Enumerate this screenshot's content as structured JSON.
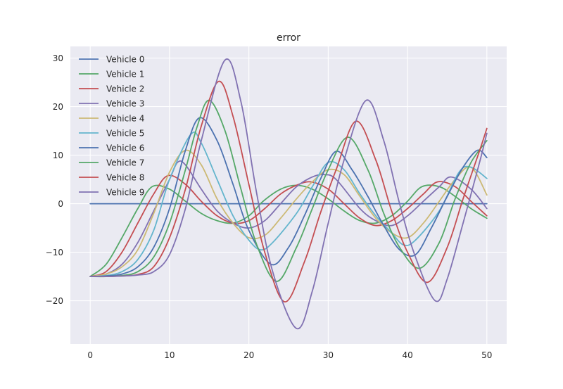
{
  "chart_data": {
    "type": "line",
    "title": "error",
    "xlabel": "",
    "ylabel": "",
    "xlim": [
      -2.5,
      52.5
    ],
    "ylim": [
      -28.9,
      32.4
    ],
    "xticks": [
      0,
      10,
      20,
      30,
      40,
      50
    ],
    "yticks": [
      -20,
      -10,
      0,
      10,
      20,
      30
    ],
    "xtick_labels": [
      "0",
      "10",
      "20",
      "30",
      "40",
      "50"
    ],
    "ytick_labels": [
      "−20",
      "−10",
      "0",
      "10",
      "20",
      "30"
    ],
    "grid": true,
    "legend_position": "upper-left",
    "series": [
      {
        "name": "Vehicle 0",
        "color": "#4c72b0",
        "x": [
          0,
          50
        ],
        "y": [
          0,
          0
        ]
      },
      {
        "name": "Vehicle 1",
        "color": "#55a868",
        "x": [
          0,
          2,
          4,
          6,
          7.8,
          10,
          12,
          14,
          16,
          18,
          20,
          21.8,
          24,
          26,
          28,
          30,
          32,
          34,
          36,
          38,
          40,
          41.8,
          44,
          46,
          48,
          50
        ],
        "y": [
          -15,
          -12.5,
          -7,
          -1,
          3.5,
          3,
          0.5,
          -2,
          -3.5,
          -4,
          -2.5,
          0.5,
          3,
          3.8,
          3,
          1,
          -1.5,
          -3.5,
          -4,
          -2.5,
          0.5,
          3.5,
          3.5,
          1.5,
          -1,
          -3
        ]
      },
      {
        "name": "Vehicle 2",
        "color": "#c44e52",
        "x": [
          0,
          2,
          4,
          6,
          8,
          9.8,
          12,
          14,
          16,
          18,
          20,
          22,
          24,
          26,
          27.8,
          30,
          32,
          34,
          36,
          38,
          40,
          42,
          43.8,
          46,
          48,
          50
        ],
        "y": [
          -15,
          -14,
          -10,
          -4,
          2,
          5.8,
          4,
          0.5,
          -2.5,
          -4,
          -3.5,
          -1,
          2,
          3.8,
          4.5,
          3,
          0,
          -3,
          -4.5,
          -3.5,
          -1,
          2,
          4.5,
          3.5,
          0.5,
          -2.5
        ]
      },
      {
        "name": "Vehicle 3",
        "color": "#8172b2",
        "x": [
          0,
          2,
          4,
          6,
          8,
          10,
          11,
          12,
          14,
          16,
          18,
          20,
          22,
          24,
          26,
          28,
          29.5,
          31,
          34,
          36,
          38,
          40,
          42,
          44,
          45.5,
          48,
          50
        ],
        "y": [
          -15,
          -14.5,
          -12.5,
          -8,
          -1.5,
          5,
          8.5,
          8,
          3,
          -1.5,
          -4,
          -5,
          -3.5,
          0,
          3.5,
          5.5,
          6,
          5,
          -1,
          -3.5,
          -4.5,
          -2.5,
          0.5,
          3.5,
          5.5,
          3,
          -1
        ]
      },
      {
        "name": "Vehicle 4",
        "color": "#ccb974",
        "x": [
          0,
          2,
          4,
          6,
          8,
          10,
          12,
          14,
          16,
          18,
          20,
          22,
          24,
          26,
          28,
          30,
          32,
          34,
          36,
          38,
          40,
          42,
          44,
          46,
          48,
          50
        ],
        "y": [
          -15,
          -14.5,
          -13,
          -9.5,
          -2,
          6.5,
          11,
          8,
          1,
          -4,
          -7,
          -6.5,
          -3,
          1,
          4.5,
          7,
          6,
          1.5,
          -3,
          -6,
          -7,
          -4,
          0.5,
          5,
          7.5,
          1.8
        ]
      },
      {
        "name": "Vehicle 5",
        "color": "#64b5cd",
        "x": [
          0,
          2,
          4,
          6,
          8,
          10,
          12.7,
          14,
          16,
          18,
          20,
          21.5,
          23,
          26,
          28,
          30,
          32,
          34,
          36,
          38,
          39.5,
          41,
          44,
          46.5,
          48,
          50
        ],
        "y": [
          -15,
          -14.8,
          -14,
          -11.5,
          -5.5,
          5,
          14.3,
          12.5,
          5,
          -2.5,
          -7.5,
          -9.5,
          -8,
          -2,
          3.5,
          8.5,
          7,
          2,
          -2.5,
          -6,
          -8.5,
          -7.5,
          -1.5,
          6.5,
          7.5,
          5.2
        ]
      },
      {
        "name": "Vehicle 6",
        "color": "#4c72b0",
        "x": [
          0,
          2,
          4,
          6,
          8,
          10,
          12,
          13.8,
          16,
          18,
          20,
          22.8,
          25,
          27,
          29,
          31,
          33,
          35,
          37,
          39,
          41,
          43,
          45,
          47,
          48.8,
          50
        ],
        "y": [
          -15,
          -14.9,
          -14.5,
          -13,
          -9,
          -1,
          11,
          17.7,
          13,
          4,
          -5.5,
          -12.5,
          -9,
          -2.5,
          5,
          10.8,
          7,
          1.5,
          -4.5,
          -9.5,
          -10.5,
          -5,
          1.5,
          7.5,
          11,
          9.5
        ]
      },
      {
        "name": "Vehicle 7",
        "color": "#55a868",
        "x": [
          0,
          2,
          4,
          6,
          8,
          10,
          12,
          13.5,
          15,
          17,
          19,
          21,
          23.5,
          26,
          28,
          30,
          32.5,
          35,
          37,
          39,
          41.5,
          44,
          46,
          48,
          50
        ],
        "y": [
          -15,
          -15,
          -14.8,
          -14,
          -11,
          -4,
          7,
          16,
          21.3,
          15,
          3,
          -8.5,
          -16,
          -9,
          -1,
          7,
          13.7,
          7,
          -2,
          -9,
          -13.3,
          -8,
          1,
          8.5,
          13
        ]
      },
      {
        "name": "Vehicle 8",
        "color": "#c44e52",
        "x": [
          0,
          2,
          4,
          6,
          8,
          10,
          12,
          14,
          16.2,
          18,
          20,
          22,
          24.5,
          27,
          29,
          31,
          33.5,
          36,
          38,
          40,
          42.5,
          45,
          47,
          49,
          50
        ],
        "y": [
          -15,
          -15,
          -14.9,
          -14.6,
          -13,
          -7,
          3,
          16,
          25.2,
          18,
          4,
          -10,
          -20.2,
          -12,
          -2,
          7,
          17,
          9,
          -1.5,
          -10,
          -16.2,
          -9,
          1,
          10.5,
          15.5
        ]
      },
      {
        "name": "Vehicle 9",
        "color": "#8172b2",
        "x": [
          0,
          2,
          4,
          6,
          8,
          10,
          12,
          14,
          17,
          19,
          21,
          23,
          26,
          28,
          30,
          32,
          34.8,
          37,
          39,
          41,
          43.5,
          45,
          47,
          49,
          50
        ],
        "y": [
          -15,
          -15,
          -14.9,
          -14.7,
          -14,
          -10.5,
          -1,
          13,
          29.6,
          21,
          2,
          -14,
          -25.7,
          -18,
          -4,
          9,
          21.3,
          13,
          0,
          -11,
          -20,
          -15.5,
          -4,
          8,
          14.5
        ]
      }
    ]
  }
}
